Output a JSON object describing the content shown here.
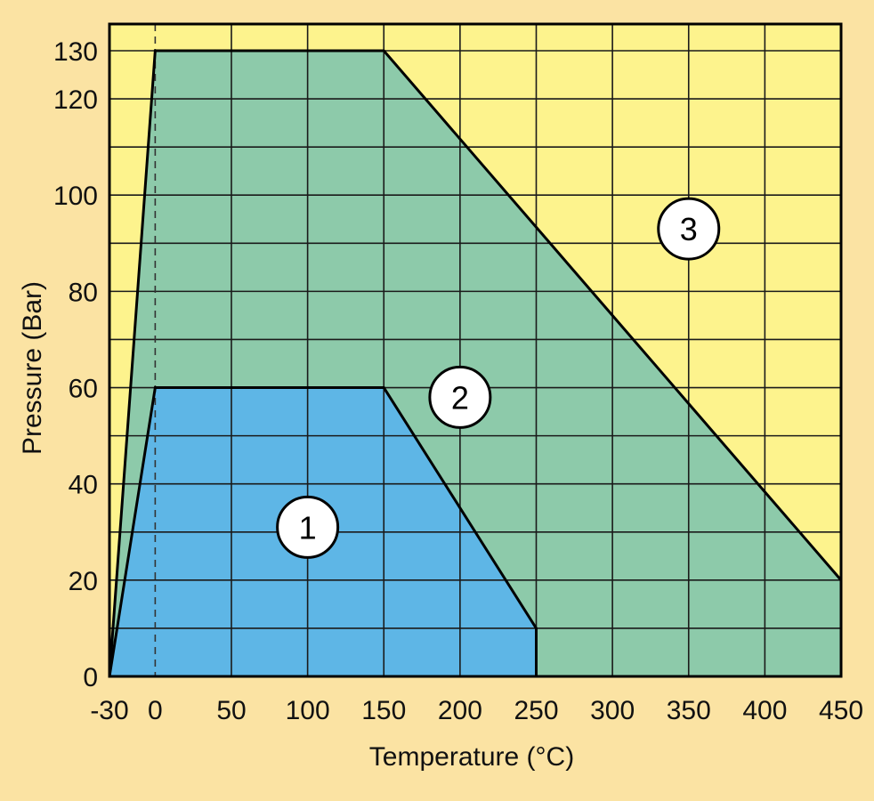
{
  "colors": {
    "page_background": "#FBE3A3",
    "plot_background": "#FDF38D",
    "region_1": "#5EB6E6",
    "region_2": "#8DCAAA",
    "gridline": "#1A1A1A",
    "outline": "#000000"
  },
  "chart_data": {
    "type": "area",
    "title": "",
    "xlabel": "Temperature (°C)",
    "ylabel": "Pressure (Bar)",
    "xlim": [
      -30,
      450
    ],
    "ylim": [
      0,
      130
    ],
    "grid": true,
    "x_ticks": [
      {
        "value": -30,
        "label": "-30"
      },
      {
        "value": 0,
        "label": "0"
      },
      {
        "value": 50,
        "label": "50"
      },
      {
        "value": 100,
        "label": "100"
      },
      {
        "value": 150,
        "label": "150"
      },
      {
        "value": 200,
        "label": "200"
      },
      {
        "value": 250,
        "label": "250"
      },
      {
        "value": 300,
        "label": "300"
      },
      {
        "value": 350,
        "label": "350"
      },
      {
        "value": 400,
        "label": "400"
      },
      {
        "value": 450,
        "label": "450"
      }
    ],
    "y_ticks": [
      {
        "value": 0,
        "label": "0"
      },
      {
        "value": 20,
        "label": "20"
      },
      {
        "value": 40,
        "label": "40"
      },
      {
        "value": 60,
        "label": "60"
      },
      {
        "value": 80,
        "label": "80"
      },
      {
        "value": 100,
        "label": "100"
      },
      {
        "value": 120,
        "label": "120"
      },
      {
        "value": 130,
        "label": "130"
      }
    ],
    "x_gridlines": [
      -30,
      0,
      50,
      100,
      150,
      200,
      250,
      300,
      350,
      400,
      450
    ],
    "y_gridlines": [
      0,
      10,
      20,
      30,
      40,
      50,
      60,
      70,
      80,
      90,
      100,
      110,
      120,
      130
    ],
    "reference_line": {
      "x": 0,
      "style": "dashed"
    },
    "regions": [
      {
        "label": "2",
        "color": "#8DCAAA",
        "points": [
          [
            -30,
            0
          ],
          [
            0,
            130
          ],
          [
            150,
            130
          ],
          [
            450,
            20
          ],
          [
            450,
            0
          ]
        ],
        "label_at": [
          200,
          58
        ]
      },
      {
        "label": "1",
        "color": "#5EB6E6",
        "points": [
          [
            -30,
            0
          ],
          [
            0,
            60
          ],
          [
            150,
            60
          ],
          [
            250,
            10
          ],
          [
            250,
            0
          ]
        ],
        "label_at": [
          100,
          31
        ]
      },
      {
        "label": "3",
        "color": "#FDF38D",
        "points": [],
        "label_at": [
          350,
          93
        ]
      }
    ]
  }
}
